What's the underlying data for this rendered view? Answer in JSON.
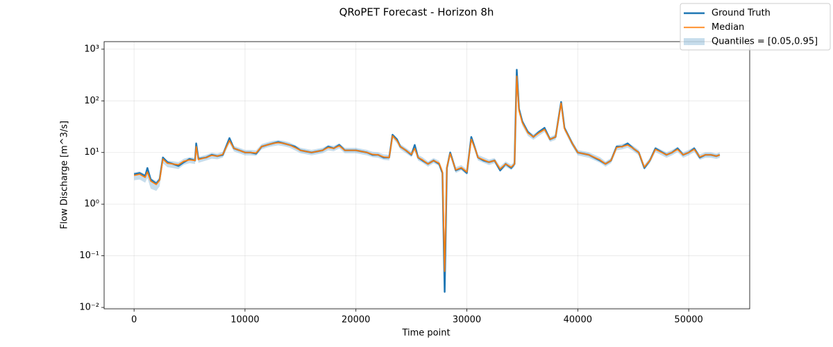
{
  "chart_data": {
    "type": "line",
    "title": "QRoPET Forecast - Horizon 8h",
    "x_label": "Time point",
    "y_label": "Flow Discharge [m^3/s]",
    "log_y": true,
    "grid": true,
    "legend": "upper right",
    "xlim": [
      -2700,
      55500
    ],
    "ylim": [
      0.0094,
      1400
    ],
    "xticks": [
      0,
      10000,
      20000,
      30000,
      40000,
      50000
    ],
    "yticks": [
      {
        "value": 0.01,
        "label": "10⁻²"
      },
      {
        "value": 0.1,
        "label": "10⁻¹"
      },
      {
        "value": 1,
        "label": "10⁰"
      },
      {
        "value": 10,
        "label": "10¹"
      },
      {
        "value": 100,
        "label": "10²"
      },
      {
        "value": 1000,
        "label": "10³"
      }
    ],
    "x": [
      0,
      500,
      1000,
      1200,
      1500,
      2000,
      2300,
      2600,
      3000,
      3500,
      4000,
      4500,
      5000,
      5500,
      5600,
      5800,
      6500,
      7000,
      7500,
      8000,
      8600,
      9000,
      9500,
      10000,
      10500,
      11000,
      11500,
      12000,
      12500,
      13000,
      13500,
      14000,
      14500,
      15000,
      16000,
      17000,
      17500,
      18000,
      18500,
      19000,
      20000,
      21000,
      21500,
      22000,
      22500,
      23000,
      23300,
      23700,
      24000,
      24500,
      25000,
      25300,
      25600,
      26000,
      26500,
      27000,
      27500,
      27800,
      28000,
      28200,
      28500,
      29000,
      29500,
      30000,
      30400,
      30800,
      31000,
      31500,
      32000,
      32500,
      33000,
      33500,
      34000,
      34300,
      34500,
      34700,
      35000,
      35500,
      36000,
      36500,
      37000,
      37500,
      38000,
      38500,
      38800,
      39500,
      40000,
      41000,
      42000,
      42500,
      43000,
      43500,
      44000,
      44500,
      45000,
      45500,
      46000,
      46500,
      47000,
      48000,
      48500,
      49000,
      49500,
      50000,
      50500,
      51000,
      51500,
      52000,
      52500,
      52800
    ],
    "band": {
      "name": "Quantiles = [0.05,0.95]",
      "color": "#1f77b4",
      "lower": [
        2.9,
        3.0,
        2.6,
        3.2,
        2.0,
        1.8,
        2.2,
        6.2,
        5.2,
        5.0,
        4.8,
        5.8,
        6.2,
        6.0,
        11,
        6.3,
        7.0,
        7.6,
        7.4,
        8.0,
        15,
        10.5,
        9.6,
        8.8,
        8.8,
        8.6,
        11.5,
        12.5,
        13.2,
        13.8,
        13.2,
        12.4,
        11,
        9.7,
        8.8,
        9.7,
        11,
        10.6,
        12,
        9.7,
        9.7,
        8.8,
        8.1,
        7.9,
        7.2,
        7,
        19,
        15,
        11.5,
        9.7,
        8.1,
        10.6,
        7,
        6.3,
        5.3,
        6.2,
        5.5,
        3.7,
        0.04,
        4.6,
        8.4,
        4.0,
        4.5,
        3.7,
        16,
        9.7,
        7,
        6.3,
        5.7,
        6.2,
        4.2,
        5.3,
        4.6,
        5.3,
        270,
        57,
        33,
        21,
        17.6,
        21,
        25,
        16,
        17.6,
        80,
        26,
        13.2,
        8.8,
        7.9,
        6.3,
        5.3,
        6.2,
        11,
        11.5,
        12.4,
        10.6,
        8.8,
        4.6,
        6.2,
        10.2,
        7.9,
        8.8,
        10.2,
        7.9,
        8.8,
        10.2,
        7.2,
        7.9,
        7.9,
        7.5,
        7.9
      ],
      "upper": [
        4.1,
        4.3,
        3.8,
        4.8,
        3.2,
        2.8,
        3.3,
        8.4,
        7.0,
        6.8,
        6.5,
        7.6,
        8.1,
        7.9,
        14.6,
        8.2,
        9.0,
        9.9,
        9.5,
        10.3,
        19,
        13.4,
        12.3,
        11.2,
        11.2,
        11,
        14.6,
        15.7,
        16.8,
        17.4,
        16.8,
        15.7,
        14,
        12.3,
        11.2,
        12.3,
        14,
        13.4,
        15.1,
        12.3,
        12.3,
        11.2,
        10.3,
        10.1,
        9.2,
        9,
        23.5,
        19,
        14.6,
        12.3,
        10.3,
        13.4,
        9,
        8.1,
        6.7,
        7.8,
        6.9,
        4.7,
        0.06,
        5.8,
        10.6,
        5.2,
        5.7,
        4.7,
        20,
        12.3,
        9,
        8.1,
        7.3,
        7.8,
        5.4,
        6.7,
        5.8,
        6.7,
        340,
        73,
        43,
        27,
        22.4,
        27,
        31,
        20,
        22.4,
        100,
        32,
        16.8,
        11.2,
        10.1,
        8.1,
        6.7,
        7.8,
        14,
        14.6,
        15.7,
        13.4,
        11.2,
        5.8,
        7.8,
        12.9,
        10.1,
        11.2,
        12.9,
        10.1,
        11.2,
        12.9,
        9.2,
        10.1,
        10.1,
        9.5,
        10.1
      ]
    },
    "series": [
      {
        "name": "Ground Truth",
        "color": "#1f77b4",
        "width": 2.5,
        "values": [
          3.8,
          4.0,
          3.5,
          5.0,
          3.0,
          2.5,
          3.0,
          8.0,
          6.5,
          6.0,
          5.5,
          6.5,
          7.5,
          7.0,
          15,
          7.5,
          8.0,
          9.0,
          8.5,
          9.0,
          19,
          12,
          11,
          10,
          10,
          9.5,
          13,
          14,
          15,
          16,
          15,
          14,
          13,
          11,
          10,
          11,
          13,
          12,
          14,
          11,
          11,
          10,
          9,
          9,
          8,
          8,
          22,
          18,
          13,
          11,
          9,
          14,
          8,
          7,
          6,
          7,
          6,
          4,
          0.02,
          5,
          10,
          4.5,
          5,
          4,
          20,
          11,
          8,
          7,
          6.5,
          7,
          4.5,
          6,
          5,
          6,
          400,
          70,
          40,
          25,
          20,
          25,
          30,
          18,
          20,
          95,
          30,
          15,
          10,
          9,
          7,
          6,
          7,
          13,
          13,
          15,
          12,
          10,
          5,
          7,
          12,
          9,
          10,
          12,
          9,
          10,
          12,
          8,
          9,
          9,
          8.5,
          9
        ]
      },
      {
        "name": "Median",
        "color": "#ff7f0e",
        "width": 1.8,
        "values": [
          3.6,
          3.8,
          3.3,
          4.2,
          2.8,
          2.4,
          2.9,
          7.5,
          6.2,
          6.0,
          5.8,
          6.8,
          7.2,
          7.0,
          13,
          7.3,
          8.0,
          8.8,
          8.5,
          9.2,
          17,
          12,
          11,
          10,
          10,
          9.8,
          13,
          14,
          15,
          15.5,
          15,
          14,
          12.5,
          11,
          10,
          11,
          12.5,
          12,
          13.5,
          11,
          11,
          10,
          9.2,
          9,
          8.2,
          8,
          21,
          17,
          13,
          11,
          9.2,
          12,
          8,
          7.2,
          6,
          7,
          6.2,
          4.2,
          0.05,
          5.2,
          9.5,
          4.6,
          5.1,
          4.2,
          18,
          11,
          8,
          7.2,
          6.5,
          7,
          4.8,
          6,
          5.2,
          6,
          300,
          65,
          38,
          24,
          20,
          24,
          28,
          18,
          20,
          90,
          29,
          15,
          10,
          9,
          7.2,
          6,
          7,
          12.5,
          13,
          14,
          12,
          10,
          5.2,
          7,
          11.5,
          9,
          10,
          11.5,
          9,
          10,
          11.5,
          8.2,
          9,
          9,
          8.5,
          9
        ]
      }
    ]
  }
}
